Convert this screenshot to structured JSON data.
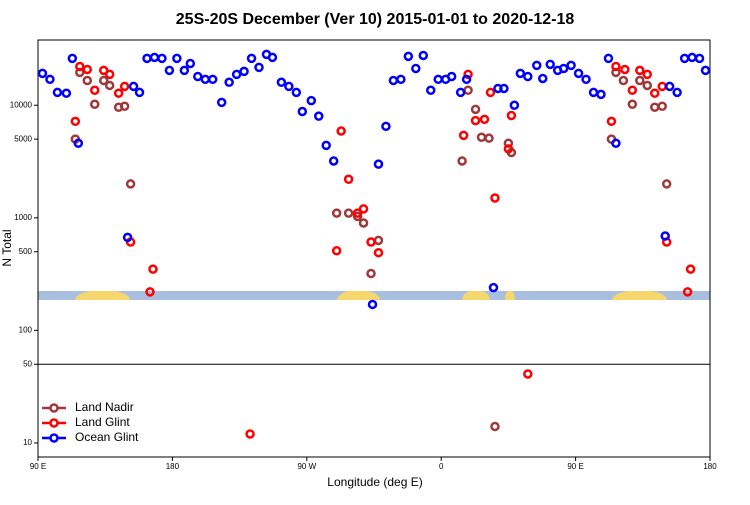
{
  "chart_data": {
    "type": "scatter",
    "title": "25S-20S December (Ver 10)   2015-01-01 to 2020-12-18",
    "x_label": "Longitude (deg E)",
    "y_label": "N Total",
    "log_y": true,
    "reference_line": 50,
    "legend": "lower left",
    "xlim": [
      90,
      540
    ],
    "ylim": [
      7.5,
      38000
    ],
    "xticks": [
      {
        "value": 90,
        "label": "90 E"
      },
      180,
      {
        "value": 270,
        "label": "90 W"
      },
      {
        "value": 360,
        "label": "0"
      },
      {
        "value": 450,
        "label": "90 E"
      },
      {
        "value": 540,
        "label": "180"
      }
    ],
    "yticks": [
      10,
      50,
      100,
      500,
      1000,
      5000,
      10000
    ],
    "series": [
      {
        "name": "Land Nadir",
        "color": "#a0383a",
        "x": [
          115,
          118,
          123,
          128,
          134,
          138,
          144,
          148,
          152,
          290,
          298,
          304,
          308,
          313,
          318,
          374,
          378,
          383,
          387,
          392,
          396,
          405,
          407,
          474,
          477,
          482,
          488,
          493,
          498,
          503,
          508,
          511
        ],
        "values": [
          5000,
          19600,
          16600,
          10200,
          16600,
          15000,
          9600,
          9800,
          2000,
          1100,
          1100,
          1030,
          900,
          320,
          630,
          3200,
          13600,
          9200,
          5200,
          5100,
          14,
          4600,
          3800,
          5000,
          19600,
          16600,
          10200,
          16600,
          15000,
          9600,
          9800,
          2000
        ]
      },
      {
        "name": "Land Glint",
        "color": "#ff0000",
        "x": [
          115,
          118,
          123,
          128,
          134,
          138,
          144,
          148,
          152,
          167,
          165,
          232,
          290,
          293,
          298,
          304,
          308,
          313,
          318,
          375,
          378,
          383,
          389,
          393,
          396,
          405,
          407,
          418,
          474,
          477,
          483,
          488,
          493,
          498,
          503,
          508,
          511,
          527,
          525
        ],
        "values": [
          7200,
          22100,
          20800,
          13600,
          20400,
          18800,
          12800,
          14700,
          610,
          350,
          220,
          12,
          510,
          5900,
          2200,
          1100,
          1200,
          610,
          490,
          5400,
          18800,
          7300,
          7500,
          13000,
          1500,
          4100,
          8100,
          41,
          7200,
          22100,
          20800,
          13600,
          20400,
          18800,
          12800,
          14700,
          610,
          350,
          220
        ]
      },
      {
        "name": "Ocean Glint",
        "color": "#0000ff",
        "x": [
          93,
          98,
          103,
          109,
          113,
          117,
          150,
          154,
          158,
          163,
          168,
          173,
          178,
          183,
          188,
          192,
          197,
          202,
          207,
          213,
          218,
          223,
          228,
          233,
          238,
          243,
          247,
          253,
          258,
          263,
          267,
          273,
          278,
          283,
          288,
          314,
          318,
          323,
          328,
          333,
          338,
          343,
          348,
          353,
          358,
          363,
          367,
          373,
          377,
          395,
          398,
          402,
          409,
          413,
          418,
          424,
          428,
          433,
          438,
          442,
          447,
          452,
          457,
          462,
          467,
          472,
          477,
          510,
          513,
          518,
          523,
          528,
          533,
          537
        ],
        "values": [
          19200,
          17000,
          13000,
          12800,
          26100,
          4600,
          670,
          14700,
          13000,
          26100,
          26600,
          26100,
          20400,
          26100,
          20400,
          23500,
          18000,
          17000,
          17000,
          10600,
          16000,
          18800,
          20000,
          26100,
          21700,
          28300,
          26600,
          16000,
          14700,
          13000,
          8800,
          11000,
          8000,
          4400,
          3200,
          170,
          3000,
          6500,
          16600,
          17000,
          27200,
          21200,
          27700,
          13600,
          17000,
          17000,
          18000,
          13000,
          17000,
          240,
          14100,
          14100,
          10000,
          19200,
          18000,
          22600,
          17300,
          23100,
          20400,
          21200,
          22600,
          19200,
          17000,
          13000,
          12500,
          26100,
          4600,
          690,
          14700,
          13000,
          26100,
          26600,
          26100,
          20400
        ]
      }
    ]
  }
}
